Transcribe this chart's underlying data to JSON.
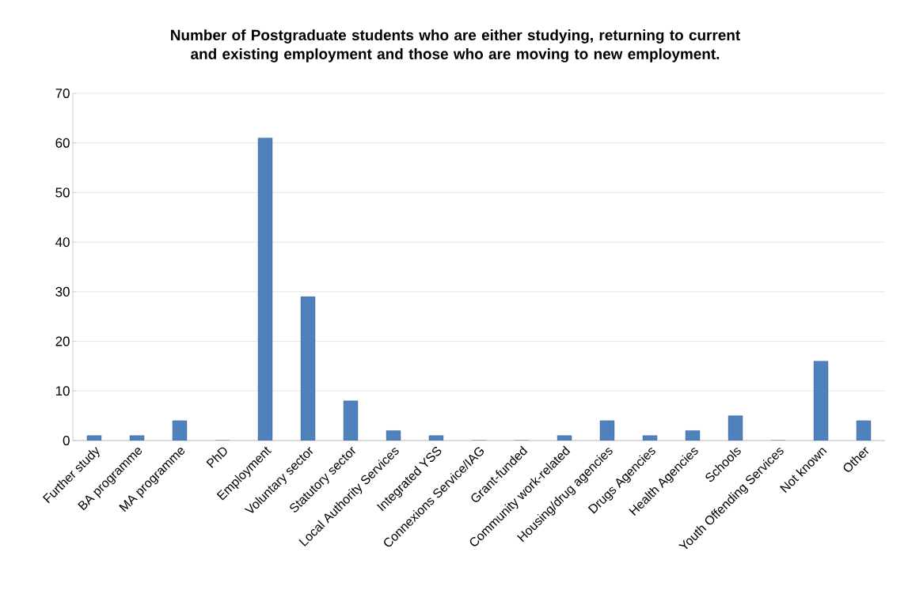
{
  "chart_data": {
    "type": "bar",
    "title": "Number of Postgraduate students who are either studying, returning to current and existing employment and those who are moving to new employment.",
    "categories": [
      "Further study",
      "BA programme",
      "MA programme",
      "PhD",
      "Employment",
      "Voluntary sector",
      "Statutory sector",
      "Local Authority Services",
      "Integrated YSS",
      "Connexions Service/IAG",
      "Grant-funded",
      "Community work-related",
      "Housing/drug agencies",
      "Drugs Agencies",
      "Health Agencies",
      "Schools",
      "Youth Offending Services",
      "Not known",
      "Other"
    ],
    "values": [
      1,
      1,
      4,
      0,
      61,
      29,
      8,
      2,
      1,
      0,
      0,
      1,
      4,
      1,
      2,
      5,
      0,
      16,
      4
    ],
    "color": "#4f81bd",
    "ylim": [
      0,
      70
    ],
    "yticks": [
      0,
      10,
      20,
      30,
      40,
      50,
      60,
      70
    ],
    "grid": "y"
  }
}
